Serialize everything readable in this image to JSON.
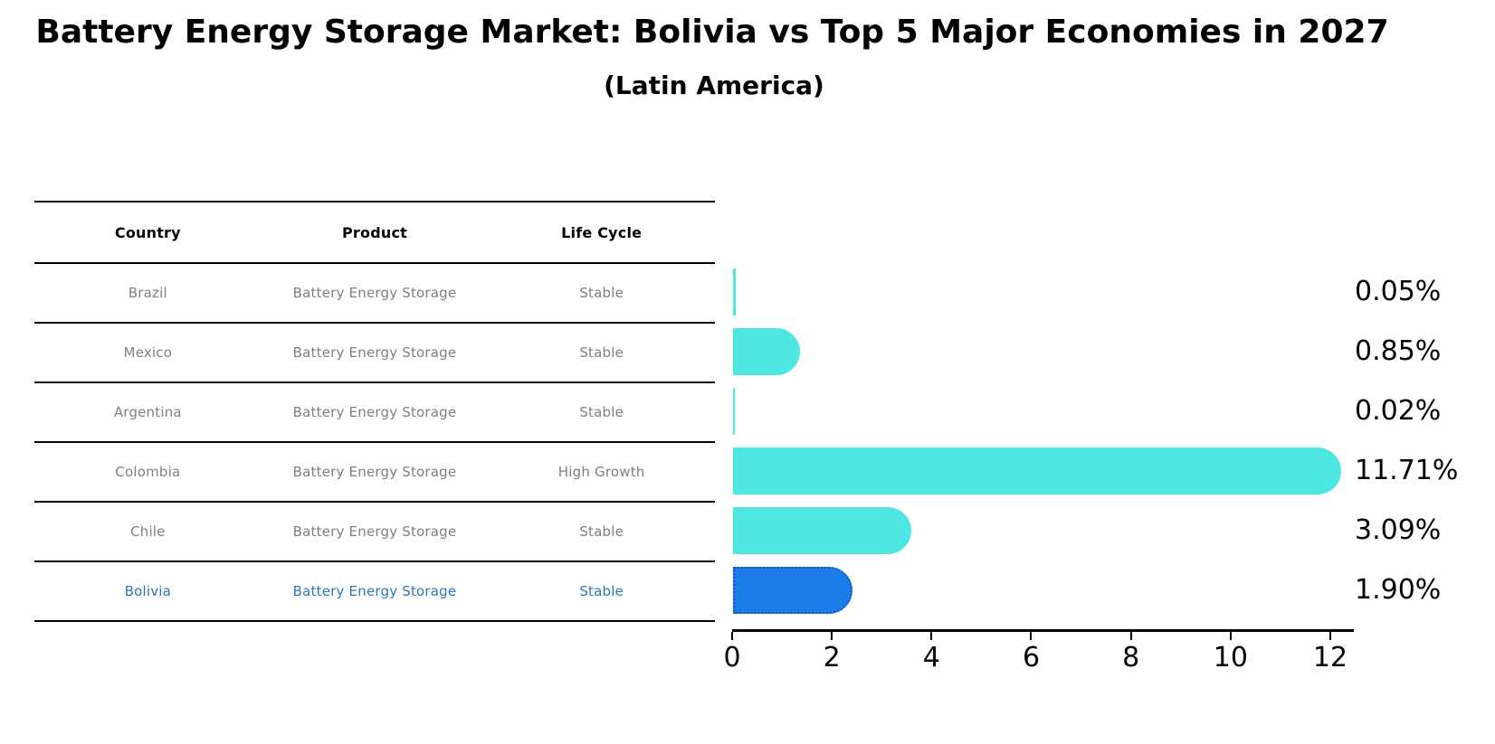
{
  "title": "Battery Energy Storage Market: Bolivia vs Top 5 Major Economies in 2027",
  "subtitle": "(Latin America)",
  "table": {
    "columns": [
      "Country",
      "Product",
      "Life Cycle"
    ],
    "rows": [
      {
        "country": "Brazil",
        "product": "Battery Energy Storage",
        "life_cycle": "Stable",
        "highlighted": false
      },
      {
        "country": "Mexico",
        "product": "Battery Energy Storage",
        "life_cycle": "Stable",
        "highlighted": false
      },
      {
        "country": "Argentina",
        "product": "Battery Energy Storage",
        "life_cycle": "Stable",
        "highlighted": false
      },
      {
        "country": "Colombia",
        "product": "Battery Energy Storage",
        "life_cycle": "High Growth",
        "highlighted": false
      },
      {
        "country": "Chile",
        "product": "Battery Energy Storage",
        "life_cycle": "Stable",
        "highlighted": false
      },
      {
        "country": "Bolivia",
        "product": "Battery Energy Storage",
        "life_cycle": "Stable",
        "highlighted": true
      }
    ]
  },
  "chart_data": {
    "type": "bar",
    "orientation": "horizontal",
    "title": "Battery Energy Storage Market: Bolivia vs Top 5 Major Economies in 2027",
    "subtitle": "(Latin America)",
    "categories": [
      "Brazil",
      "Mexico",
      "Argentina",
      "Colombia",
      "Chile",
      "Bolivia"
    ],
    "values": [
      0.05,
      0.85,
      0.02,
      11.71,
      3.09,
      1.9
    ],
    "value_labels": [
      "0.05%",
      "0.85%",
      "0.02%",
      "11.71%",
      "3.09%",
      "1.90%"
    ],
    "xlabel": "",
    "ylabel": "",
    "xlim": [
      0,
      12.5
    ],
    "x_ticks": [
      0,
      2,
      4,
      6,
      8,
      10,
      12
    ],
    "grid": false,
    "legend": false,
    "highlight_index": 5,
    "highlight_category": "Bolivia"
  },
  "colors": {
    "background": "#ffffff",
    "bar_cyan": "#4de8e1",
    "bar_blue": "#1b7ee8",
    "bar_blue_border": "#1456c8",
    "highlight_text": "#2878be",
    "row_text": "#7f7f7f",
    "header_text": "#000000",
    "axis": "#000000"
  }
}
